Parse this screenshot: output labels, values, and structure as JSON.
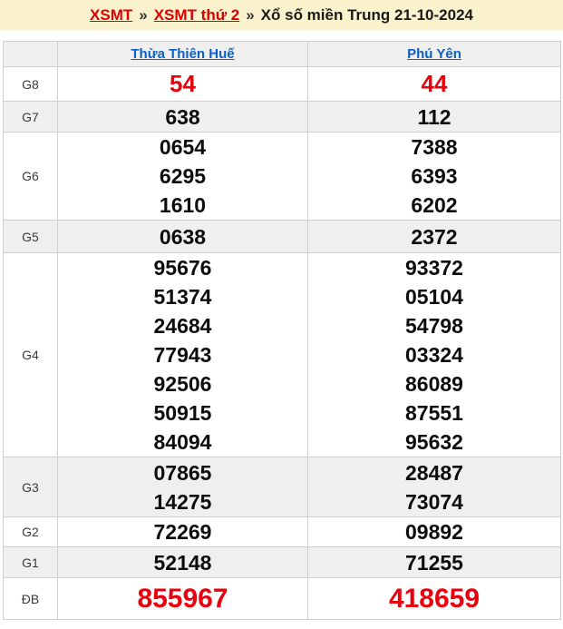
{
  "breadcrumb": {
    "link1": "XSMT",
    "separator": "»",
    "link2": "XSMT thứ 2",
    "title": "Xổ số miền Trung 21-10-2024"
  },
  "table": {
    "columns": [
      "Thừa Thiên Huế",
      "Phú Yên"
    ],
    "rows": [
      {
        "label": "G8",
        "col1": [
          "54"
        ],
        "col2": [
          "44"
        ]
      },
      {
        "label": "G7",
        "col1": [
          "638"
        ],
        "col2": [
          "112"
        ]
      },
      {
        "label": "G6",
        "col1": [
          "0654",
          "6295",
          "1610"
        ],
        "col2": [
          "7388",
          "6393",
          "6202"
        ]
      },
      {
        "label": "G5",
        "col1": [
          "0638"
        ],
        "col2": [
          "2372"
        ]
      },
      {
        "label": "G4",
        "col1": [
          "95676",
          "51374",
          "24684",
          "77943",
          "92506",
          "50915",
          "84094"
        ],
        "col2": [
          "93372",
          "05104",
          "54798",
          "03324",
          "86089",
          "87551",
          "95632"
        ]
      },
      {
        "label": "G3",
        "col1": [
          "07865",
          "14275"
        ],
        "col2": [
          "28487",
          "73074"
        ]
      },
      {
        "label": "G2",
        "col1": [
          "72269"
        ],
        "col2": [
          "09892"
        ]
      },
      {
        "label": "G1",
        "col1": [
          "52148"
        ],
        "col2": [
          "71255"
        ]
      },
      {
        "label": "ĐB",
        "col1": [
          "855967"
        ],
        "col2": [
          "418659"
        ]
      }
    ]
  },
  "colors": {
    "breadcrumb_bg": "#faf1cd",
    "red_link": "#dd0000",
    "blue_link": "#0a61c2",
    "red_number": "#e8000d",
    "row_alt_bg": "#efefef",
    "border": "#cfcfcf"
  }
}
